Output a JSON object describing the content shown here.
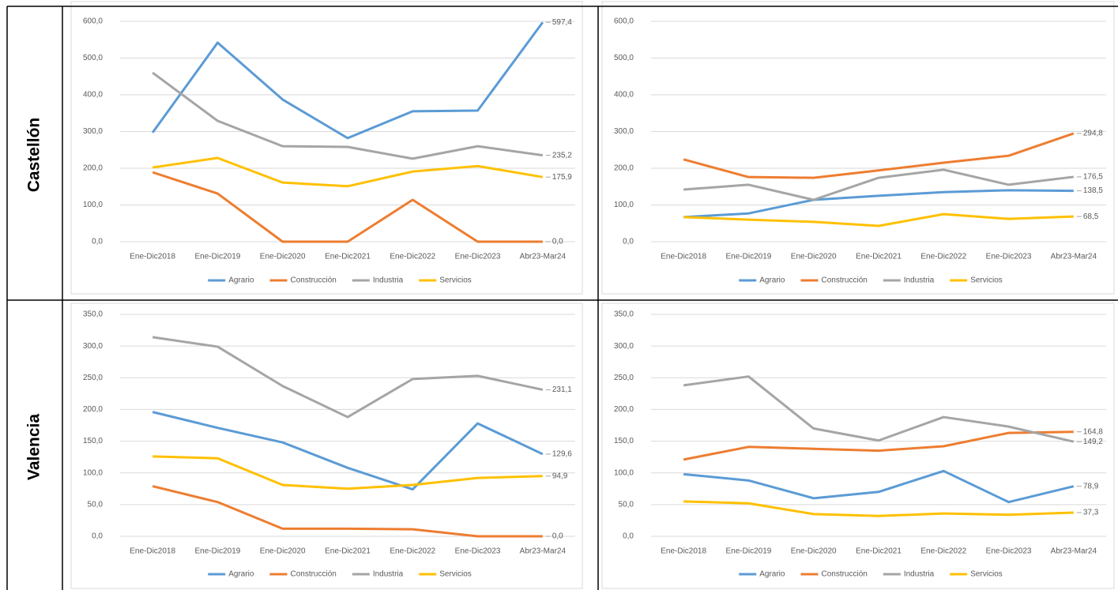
{
  "table": {
    "rows": [
      "Castellón",
      "Valencia"
    ]
  },
  "chart_data": [
    {
      "type": "line",
      "categories": [
        "Ene-Dic2018",
        "Ene-Dic2019",
        "Ene-Dic2020",
        "Ene-Dic2021",
        "Ene-Dic2022",
        "Ene-Dic2023",
        "Abr23-Mar24"
      ],
      "ylim": [
        0,
        600
      ],
      "grid": true,
      "yticks": [
        {
          "value": 0,
          "label": "0,0"
        },
        {
          "value": 100,
          "label": "100,0"
        },
        {
          "value": 200,
          "label": "200,0"
        },
        {
          "value": 300,
          "label": "300,0"
        },
        {
          "value": 400,
          "label": "400,0"
        },
        {
          "value": 500,
          "label": "500,0"
        },
        {
          "value": 600,
          "label": "600,0"
        }
      ],
      "series": [
        {
          "name": "Agrario",
          "color": "#5b9bd5",
          "values": [
            297,
            542,
            387,
            282,
            355,
            357,
            597.4
          ],
          "value_labels": [
            null,
            null,
            null,
            null,
            null,
            null,
            "597,4"
          ]
        },
        {
          "name": "Construcción",
          "color": "#ed7d31",
          "values": [
            189,
            131,
            0,
            0,
            114,
            0,
            0.0
          ],
          "value_labels": [
            null,
            null,
            null,
            null,
            null,
            null,
            "0,0"
          ]
        },
        {
          "name": "Industria",
          "color": "#a5a5a5",
          "values": [
            460,
            329,
            260,
            258,
            226,
            260,
            235.2
          ],
          "value_labels": [
            null,
            null,
            null,
            null,
            null,
            null,
            "235,2"
          ]
        },
        {
          "name": "Servicios",
          "color": "#ffc000",
          "values": [
            202,
            228,
            161,
            151,
            191,
            206,
            175.9
          ],
          "value_labels": [
            null,
            null,
            null,
            null,
            null,
            null,
            "175,9"
          ]
        }
      ]
    },
    {
      "type": "line",
      "categories": [
        "Ene-Dic2018",
        "Ene-Dic2019",
        "Ene-Dic2020",
        "Ene-Dic2021",
        "Ene-Dic2022",
        "Ene-Dic2023",
        "Abr23-Mar24"
      ],
      "ylim": [
        0,
        600
      ],
      "grid": true,
      "yticks": [
        {
          "value": 0,
          "label": "0,0"
        },
        {
          "value": 100,
          "label": "100,0"
        },
        {
          "value": 200,
          "label": "200,0"
        },
        {
          "value": 300,
          "label": "300,0"
        },
        {
          "value": 400,
          "label": "400,0"
        },
        {
          "value": 500,
          "label": "500,0"
        },
        {
          "value": 600,
          "label": "600,0"
        }
      ],
      "series": [
        {
          "name": "Agrario",
          "color": "#5b9bd5",
          "values": [
            67,
            77,
            114,
            125,
            135,
            140,
            138.5
          ],
          "value_labels": [
            null,
            null,
            null,
            null,
            null,
            null,
            "138,5"
          ]
        },
        {
          "name": "Construcción",
          "color": "#ed7d31",
          "values": [
            224,
            176,
            174,
            194,
            215,
            234,
            294.8
          ],
          "value_labels": [
            null,
            null,
            null,
            null,
            null,
            null,
            "294,8"
          ]
        },
        {
          "name": "Industria",
          "color": "#a5a5a5",
          "values": [
            142,
            155,
            114,
            174,
            196,
            155,
            176.5
          ],
          "value_labels": [
            null,
            null,
            null,
            null,
            null,
            null,
            "176,5"
          ]
        },
        {
          "name": "Servicios",
          "color": "#ffc000",
          "values": [
            67,
            60,
            54,
            43,
            75,
            62,
            68.5
          ],
          "value_labels": [
            null,
            null,
            null,
            null,
            null,
            null,
            "68,5"
          ]
        }
      ]
    },
    {
      "type": "line",
      "categories": [
        "Ene-Dic2018",
        "Ene-Dic2019",
        "Ene-Dic2020",
        "Ene-Dic2021",
        "Ene-Dic2022",
        "Ene-Dic2023",
        "Abr23-Mar24"
      ],
      "ylim": [
        0,
        350
      ],
      "grid": true,
      "yticks": [
        {
          "value": 0,
          "label": "0,0"
        },
        {
          "value": 50,
          "label": "50,0"
        },
        {
          "value": 100,
          "label": "100,0"
        },
        {
          "value": 150,
          "label": "150,0"
        },
        {
          "value": 200,
          "label": "200,0"
        },
        {
          "value": 250,
          "label": "250,0"
        },
        {
          "value": 300,
          "label": "300,0"
        },
        {
          "value": 350,
          "label": "350,0"
        }
      ],
      "series": [
        {
          "name": "Agrario",
          "color": "#5b9bd5",
          "values": [
            196,
            171,
            148,
            108,
            74,
            178,
            129.6
          ],
          "value_labels": [
            null,
            null,
            null,
            null,
            null,
            null,
            "129,6"
          ]
        },
        {
          "name": "Construcción",
          "color": "#ed7d31",
          "values": [
            79,
            54,
            12,
            12,
            11,
            0,
            0.0
          ],
          "value_labels": [
            null,
            null,
            null,
            null,
            null,
            null,
            "0,0"
          ]
        },
        {
          "name": "Industria",
          "color": "#a5a5a5",
          "values": [
            314,
            299,
            237,
            188,
            248,
            253,
            231.1
          ],
          "value_labels": [
            null,
            null,
            null,
            null,
            null,
            null,
            "231,1"
          ]
        },
        {
          "name": "Servicios",
          "color": "#ffc000",
          "values": [
            126,
            123,
            81,
            75,
            81,
            92,
            94.9
          ],
          "value_labels": [
            null,
            null,
            null,
            null,
            null,
            null,
            "94,9"
          ]
        }
      ]
    },
    {
      "type": "line",
      "categories": [
        "Ene-Dic2018",
        "Ene-Dic2019",
        "Ene-Dic2020",
        "Ene-Dic2021",
        "Ene-Dic2022",
        "Ene-Dic2023",
        "Abr23-Mar24"
      ],
      "ylim": [
        0,
        350
      ],
      "grid": true,
      "yticks": [
        {
          "value": 0,
          "label": "0,0"
        },
        {
          "value": 50,
          "label": "50,0"
        },
        {
          "value": 100,
          "label": "100,0"
        },
        {
          "value": 150,
          "label": "150,0"
        },
        {
          "value": 200,
          "label": "200,0"
        },
        {
          "value": 250,
          "label": "250,0"
        },
        {
          "value": 300,
          "label": "300,0"
        },
        {
          "value": 350,
          "label": "350,0"
        }
      ],
      "series": [
        {
          "name": "Agrario",
          "color": "#5b9bd5",
          "values": [
            98,
            88,
            60,
            70,
            103,
            54,
            78.9
          ],
          "value_labels": [
            null,
            null,
            null,
            null,
            null,
            null,
            "78,9"
          ]
        },
        {
          "name": "Construcción",
          "color": "#ed7d31",
          "values": [
            121,
            141,
            138,
            135,
            142,
            163,
            164.8
          ],
          "value_labels": [
            null,
            null,
            null,
            null,
            null,
            null,
            "164,8"
          ]
        },
        {
          "name": "Industria",
          "color": "#a5a5a5",
          "values": [
            238,
            252,
            170,
            151,
            188,
            173,
            149.2
          ],
          "value_labels": [
            null,
            null,
            null,
            null,
            null,
            null,
            "149,2"
          ]
        },
        {
          "name": "Servicios",
          "color": "#ffc000",
          "values": [
            55,
            52,
            35,
            32,
            36,
            34,
            37.3
          ],
          "value_labels": [
            null,
            null,
            null,
            null,
            null,
            null,
            "37,3"
          ]
        }
      ]
    }
  ]
}
